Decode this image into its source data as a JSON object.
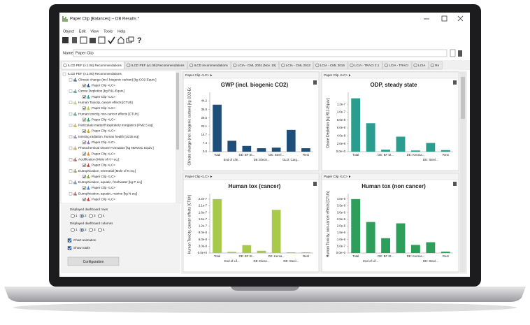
{
  "window": {
    "title": "Paper Clip [Balances] -- DB Results *",
    "menu": [
      "Object",
      "Edit",
      "View",
      "Tools",
      "Help"
    ],
    "help_icon": "?"
  },
  "name": {
    "label": "Name",
    "value": "Paper Clip"
  },
  "tabs": [
    "ILCD PEF (v.1.06) Recommendations",
    "ILCD PEF (v1.09) Recommendations",
    "ILCD recommendations",
    "LCIA - CML 2001 (Nov. 10)",
    "LCIA - CML 2013",
    "LCIA - CML 2015",
    "LCIA - TRACI 2.1",
    "LCIA - TRACI",
    "LCIA",
    "Re"
  ],
  "tree": {
    "root": "ILCD PEF (v.1.06) Recommendations",
    "nodes": [
      {
        "label": "Climate change (incl. biogenic carbon) [kg CO2-Equiv.]",
        "child": "Paper Clip <LC>"
      },
      {
        "label": "Ozone Depletion [kg R11-Equiv.]",
        "child": "Paper Clip <LC>"
      },
      {
        "label": "Human Toxicity, cancer effects [CTUh]",
        "child": "Paper Clip <LC>"
      },
      {
        "label": "Human toxicity, non-cancer effects [CTUh]",
        "child": "Paper Clip <LC>"
      },
      {
        "label": "Particulate matter/Respiratory inorganics [PM2.5 eq]",
        "child": "Paper Clip <LC>"
      },
      {
        "label": "Ionising radiation, human health [U235 eq]",
        "child": "Paper Clip <LC>"
      },
      {
        "label": "Photochemical Ozone Formation [kg NMVOC Equiv.]",
        "child": "Paper Clip <LC>"
      },
      {
        "label": "Acidification [Mole of H+ eq.]",
        "child": "Paper Clip <LC>"
      },
      {
        "label": "Eutrophication, terrestrial [Mole of N eq.]",
        "child": "Paper Clip <LC>"
      },
      {
        "label": "Eutrophication, aquatic, freshwater [kg P eq.]",
        "child": "Paper Clip <LC>"
      },
      {
        "label": "Eutrophication, aquatic, marine [kg N eq.]",
        "child": "Paper Clip <LC>"
      }
    ]
  },
  "settings": {
    "rows_label": "Displayed dashboard rows",
    "rows_options": [
      1,
      2,
      3,
      4
    ],
    "rows_selected": 2,
    "columns_label": "Displayed dashboard columns",
    "columns_options": [
      1,
      2,
      3,
      4
    ],
    "columns_selected": 2,
    "chart_animation": {
      "label": "Chart animation",
      "checked": true
    },
    "show_totals": {
      "label": "Show totals",
      "checked": true
    },
    "button": "Configuration"
  },
  "chart_data": [
    {
      "type": "bar",
      "panel": "Paper Clip <LC>",
      "title": "GWP (incl. biogenic CO2)",
      "y_label": "Climate change (incl. biogenic carbon) [kg CO2-Equiv.]",
      "categories": [
        "Total",
        "End of Life...",
        "DE: BF St...",
        "DE: Electr...",
        "DE: Steel...",
        "GLO: Carg...",
        "Rest"
      ],
      "values": [
        41,
        9.5,
        5,
        3,
        3.5,
        19,
        3
      ],
      "color": "#1f4e79",
      "ylim": [
        0,
        50
      ],
      "yticks": [
        {
          "value": 0,
          "label": "0.0"
        },
        7.4,
        14.7,
        22.1,
        29.5,
        36.8,
        44.2
      ]
    },
    {
      "type": "bar",
      "panel": "Paper Clip <LC>",
      "title": "ODP, steady state",
      "y_label": "Ozone Depletion [kg R11-Equiv.]",
      "categories": [
        "Total",
        null,
        "DE: BF St...",
        null,
        "DE: Kerosa...",
        "DE: Steel...",
        "Rest"
      ],
      "values": [
        1.35e-07,
        7.2e-08,
        5e-09,
        3.8e-08,
        3e-09,
        2.2e-08,
        4e-09
      ],
      "color": "#2a9d8f",
      "ylim": [
        0,
        1.45e-07
      ],
      "yticks": [
        {
          "value": 0,
          "label": "0.0e+0"
        },
        {
          "value": 2e-08,
          "label": "2.0e-8"
        },
        {
          "value": 4e-08,
          "label": "4.0e-8"
        },
        {
          "value": 6e-08,
          "label": "6.0e-8"
        },
        {
          "value": 8e-08,
          "label": "8.0e-8"
        },
        {
          "value": 1e-07,
          "label": "1.0e-7"
        },
        {
          "value": 1.2e-07,
          "label": "1.2e-7"
        }
      ]
    },
    {
      "type": "bar",
      "panel": "Paper Clip <LC>",
      "title": "Human tox (cancer)",
      "y_label": "Human Toxicity, cancer effects [CTUh]",
      "categories": [
        "Total",
        "End of Lif...",
        "DE: BF St...",
        "DE: Diese...",
        "DE: Kersa...",
        "DE: Steel...",
        "Rest"
      ],
      "values": [
        2.4e-07,
        5e-09,
        3.5e-08,
        1e-08,
        1.92e-07,
        3e-09,
        3e-09
      ],
      "color": "#a8c94a",
      "ylim": [
        0,
        2.55e-07
      ],
      "yticks": [
        {
          "value": 0,
          "label": "0.0e+0"
        },
        {
          "value": 3e-08,
          "label": "3.0e-8"
        },
        {
          "value": 6e-08,
          "label": "6.0e-8"
        },
        {
          "value": 9e-08,
          "label": "9.0e-8"
        },
        {
          "value": 1.2e-07,
          "label": "1.2e-7"
        },
        {
          "value": 1.5e-07,
          "label": "1.5e-7"
        },
        {
          "value": 1.8e-07,
          "label": "1.8e-7"
        },
        {
          "value": 2.1e-07,
          "label": "2.1e-7"
        },
        {
          "value": 2.4e-07,
          "label": "2.4e-7"
        }
      ]
    },
    {
      "type": "bar",
      "panel": "Paper Clip <LC>",
      "title": "Human tox (non cancer)",
      "y_label": "Human Toxicity, non-cancer effects [CTUh]",
      "categories": [
        "Total",
        "End of Lif...",
        "DE: BF St...",
        null,
        "DE: Kerosa...",
        "DE: Steel...",
        "Rest"
      ],
      "values": [
        4e-06,
        2.3e-06,
        1.1e-06,
        2.2e-06,
        6e-07,
        8e-07,
        1e-07
      ],
      "color": "#2e9e5b",
      "ylim": [
        0,
        4.25e-06
      ],
      "yticks": [
        {
          "value": 0,
          "label": "0.0e+0"
        },
        {
          "value": 5e-07,
          "label": "5.0e-7"
        },
        {
          "value": 1e-06,
          "label": "1.0e-6"
        },
        {
          "value": 1.5e-06,
          "label": "1.5e-6"
        },
        {
          "value": 2e-06,
          "label": "2.0e-6"
        },
        {
          "value": 2.5e-06,
          "label": "2.5e-6"
        },
        {
          "value": 3e-06,
          "label": "3.0e-6"
        },
        {
          "value": 3.5e-06,
          "label": "3.5e-6"
        },
        {
          "value": 4e-06,
          "label": "4.0e-6"
        }
      ]
    }
  ]
}
